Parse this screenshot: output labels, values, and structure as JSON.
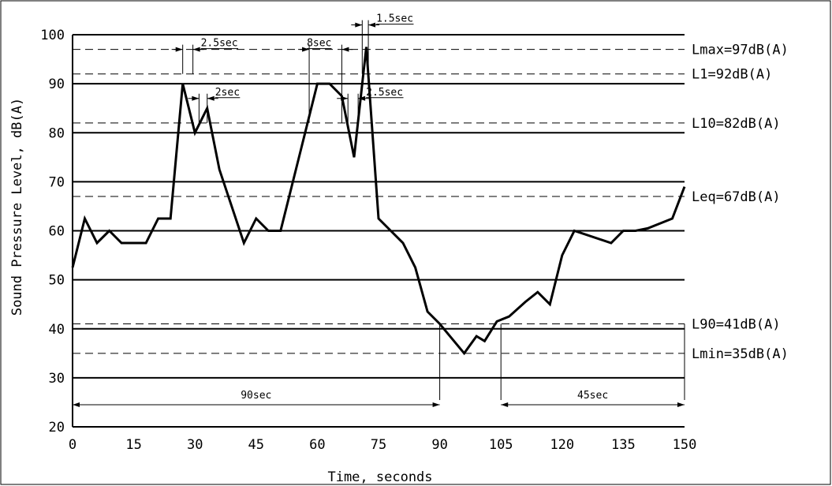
{
  "chart_data": {
    "type": "line",
    "title": "",
    "xlabel": "Time, seconds",
    "ylabel": "Sound Pressure Level, dB(A)",
    "xlim": [
      0,
      150
    ],
    "ylim": [
      20,
      100
    ],
    "xticks": [
      0,
      15,
      30,
      45,
      60,
      75,
      90,
      105,
      120,
      135,
      150
    ],
    "yticks": [
      20,
      30,
      40,
      50,
      60,
      70,
      80,
      90,
      100
    ],
    "grid": true,
    "series": [
      {
        "x": [
          0,
          3,
          6,
          9,
          12,
          15,
          18,
          21,
          24,
          27,
          30,
          33,
          36,
          42,
          45,
          48,
          51,
          57,
          60,
          63,
          66,
          69,
          72,
          75,
          78,
          81,
          84,
          87,
          90,
          93,
          96,
          99,
          101,
          104,
          107,
          111,
          114,
          117,
          120,
          123,
          132,
          135,
          138,
          141,
          147,
          150
        ],
        "values": [
          52.5,
          62.5,
          57.5,
          60,
          57.5,
          57.5,
          57.5,
          62.5,
          62.5,
          90,
          80,
          85,
          72.5,
          57.5,
          62.5,
          60,
          60,
          80,
          90,
          90,
          87.5,
          75,
          97.5,
          62.5,
          60,
          57.5,
          52.5,
          43.5,
          41,
          38,
          35,
          38.5,
          37.5,
          41.5,
          42.5,
          45.5,
          47.5,
          45,
          55,
          60,
          57.5,
          60,
          60,
          60.5,
          62.5,
          69
        ]
      }
    ],
    "reference_lines": [
      {
        "y": 97,
        "label": "Lmax=97dB(A)"
      },
      {
        "y": 92,
        "label": "L1=92dB(A)"
      },
      {
        "y": 82,
        "label": "L10=82dB(A)"
      },
      {
        "y": 67,
        "label": "Leq=67dB(A)"
      },
      {
        "y": 41,
        "label": "L90=41dB(A)"
      },
      {
        "y": 35,
        "label": "Lmin=35dB(A)"
      }
    ],
    "annotations": [
      {
        "type": "interval",
        "label": "2.5sec",
        "x1": 27,
        "x2": 29.5,
        "y_from": 92,
        "y_line": 97
      },
      {
        "type": "interval",
        "label": "2sec",
        "x1": 31,
        "x2": 33,
        "y_from": 82,
        "y_line": 87
      },
      {
        "type": "interval",
        "label": "8sec",
        "x1": 58,
        "x2": 66,
        "y_from": 82,
        "y_line": 97
      },
      {
        "type": "interval",
        "label": "2.5sec",
        "x1": 67.5,
        "x2": 70,
        "y_from": 82,
        "y_line": 87
      },
      {
        "type": "interval",
        "label": "1.5sec",
        "x1": 71,
        "x2": 72.5,
        "y_from": 92,
        "y_line": 102
      },
      {
        "type": "interval",
        "label": "90sec",
        "x1": 0,
        "x2": 90,
        "y_from": 41,
        "y_line": 24.5
      },
      {
        "type": "interval",
        "label": "45sec",
        "x1": 105,
        "x2": 150,
        "y_from": 41,
        "y_line": 24.5
      }
    ]
  }
}
